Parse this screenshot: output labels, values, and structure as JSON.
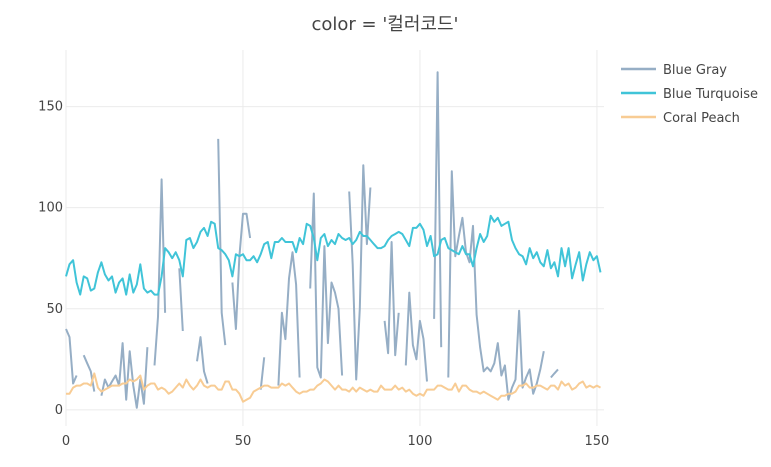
{
  "chart_data": {
    "type": "line",
    "title": "color = '컬러코드'",
    "xlabel": "",
    "ylabel": "",
    "xlim": [
      0,
      152
    ],
    "ylim": [
      -8,
      178
    ],
    "x_ticks": [
      0,
      50,
      100,
      150
    ],
    "y_ticks": [
      0,
      50,
      100,
      150
    ],
    "grid": true,
    "legend_position": "top-right",
    "series": [
      {
        "name": "Blue Gray",
        "color": "#96aec5",
        "values": [
          40,
          36,
          13,
          17,
          null,
          27,
          23,
          19,
          9,
          null,
          7,
          15,
          11,
          14,
          17,
          12,
          33,
          5,
          29,
          12,
          1,
          15,
          3,
          31,
          null,
          22,
          46,
          114,
          48,
          null,
          null,
          null,
          70,
          39,
          null,
          null,
          null,
          24,
          36,
          19,
          13,
          null,
          null,
          134,
          48,
          32,
          null,
          63,
          40,
          76,
          97,
          97,
          85,
          null,
          null,
          10,
          26,
          null,
          null,
          null,
          12,
          48,
          35,
          65,
          78,
          62,
          16,
          null,
          null,
          60,
          107,
          21,
          16,
          81,
          33,
          63,
          58,
          50,
          17,
          null,
          108,
          72,
          15,
          50,
          121,
          82,
          110,
          null,
          null,
          null,
          44,
          28,
          83,
          27,
          48,
          null,
          22,
          58,
          32,
          25,
          44,
          35,
          14,
          null,
          45,
          167,
          31,
          null,
          16,
          118,
          76,
          86,
          95,
          78,
          73,
          91,
          47,
          31,
          19,
          21,
          19,
          23,
          33,
          17,
          22,
          5,
          11,
          15,
          49,
          11,
          16,
          20,
          8,
          13,
          20,
          29,
          null,
          16,
          18,
          20,
          null,
          null
        ]
      },
      {
        "name": "Blue Turquoise",
        "color": "#40c4d8",
        "values": [
          66,
          72,
          74,
          63,
          57,
          66,
          65,
          59,
          60,
          68,
          73,
          67,
          64,
          66,
          58,
          63,
          65,
          57,
          67,
          58,
          62,
          72,
          60,
          58,
          59,
          57,
          57,
          66,
          80,
          78,
          75,
          78,
          74,
          66,
          84,
          85,
          80,
          83,
          88,
          90,
          86,
          93,
          92,
          80,
          79,
          77,
          74,
          66,
          77,
          76,
          77,
          74,
          74,
          76,
          73,
          77,
          82,
          83,
          75,
          83,
          83,
          85,
          83,
          83,
          83,
          78,
          85,
          82,
          92,
          91,
          85,
          74,
          85,
          87,
          81,
          84,
          82,
          87,
          85,
          84,
          85,
          82,
          84,
          88,
          86,
          86,
          84,
          82,
          80,
          80,
          81,
          84,
          86,
          87,
          88,
          87,
          84,
          81,
          90,
          90,
          92,
          89,
          81,
          86,
          76,
          77,
          84,
          85,
          80,
          79,
          78,
          77,
          81,
          77,
          77,
          71,
          80,
          87,
          83,
          86,
          96,
          93,
          95,
          91,
          92,
          93,
          84,
          80,
          77,
          76,
          72,
          80,
          75,
          78,
          73,
          71,
          79,
          70,
          73,
          66,
          80,
          71,
          80,
          65,
          72,
          78,
          64,
          72,
          78,
          74,
          76,
          68
        ]
      },
      {
        "name": "Coral Peach",
        "color": "#f8cc94",
        "values": [
          8,
          8,
          11,
          12,
          12,
          13,
          13,
          12,
          18,
          11,
          9,
          10,
          11,
          12,
          12,
          12,
          13,
          13,
          15,
          14,
          15,
          17,
          10,
          12,
          13,
          13,
          10,
          11,
          10,
          8,
          9,
          11,
          13,
          11,
          15,
          12,
          10,
          12,
          15,
          12,
          11,
          12,
          12,
          10,
          10,
          14,
          14,
          10,
          10,
          8,
          4,
          5,
          6,
          9,
          10,
          11,
          12,
          12,
          11,
          11,
          11,
          13,
          12,
          13,
          11,
          9,
          8,
          9,
          9,
          10,
          10,
          12,
          13,
          15,
          14,
          12,
          10,
          12,
          10,
          10,
          9,
          11,
          9,
          11,
          10,
          9,
          10,
          9,
          9,
          12,
          10,
          10,
          10,
          12,
          10,
          11,
          9,
          10,
          8,
          7,
          8,
          7,
          10,
          10,
          10,
          12,
          12,
          11,
          10,
          10,
          13,
          9,
          12,
          12,
          10,
          9,
          9,
          8,
          9,
          8,
          7,
          6,
          5,
          7,
          7,
          8,
          8,
          9,
          12,
          12,
          13,
          11,
          11,
          12,
          12,
          11,
          10,
          12,
          12,
          10,
          14,
          12,
          13,
          10,
          11,
          13,
          14,
          11,
          12,
          11,
          12,
          11
        ]
      }
    ]
  }
}
